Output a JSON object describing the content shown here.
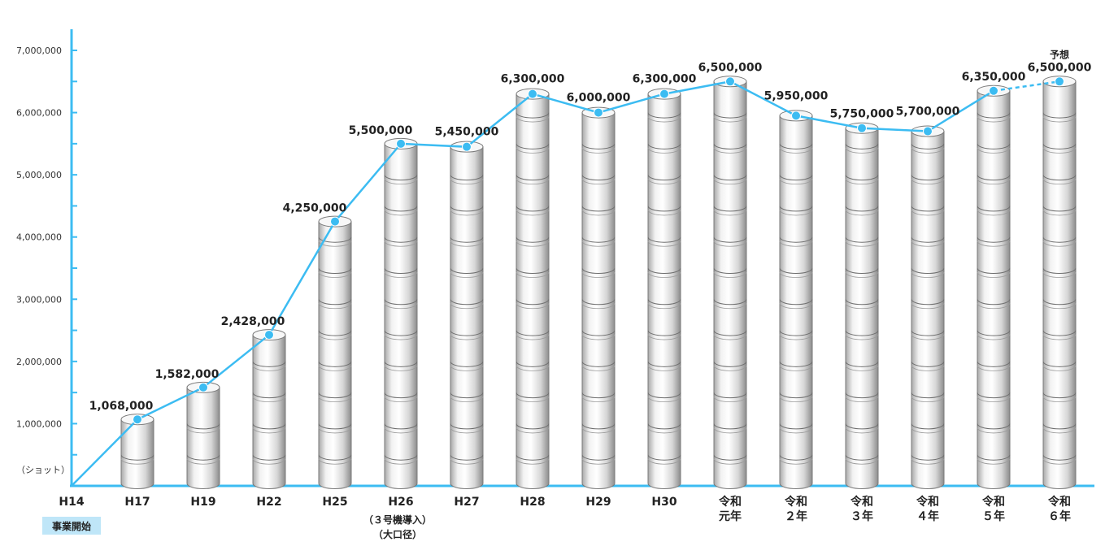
{
  "chart_data": {
    "type": "bar",
    "unit_label": "（ショット）",
    "ylim": [
      0,
      7300000
    ],
    "y_ticks": [
      1000000,
      2000000,
      3000000,
      4000000,
      5000000,
      6000000,
      7000000
    ],
    "y_tick_labels": [
      "1,000,000",
      "2,000,000",
      "3,000,000",
      "4,000,000",
      "5,000,000",
      "6,000,000",
      "7,000,000"
    ],
    "grid": false,
    "accent_color": "#3cbcf2",
    "categories": [
      {
        "label": [
          "H14"
        ],
        "value": 0,
        "data_label": "",
        "bar": false
      },
      {
        "label": [
          "H17"
        ],
        "value": 1068000,
        "data_label": "1,068,000",
        "bar": true
      },
      {
        "label": [
          "H19"
        ],
        "value": 1582000,
        "data_label": "1,582,000",
        "bar": true
      },
      {
        "label": [
          "H22"
        ],
        "value": 2428000,
        "data_label": "2,428,000",
        "bar": true
      },
      {
        "label": [
          "H25"
        ],
        "value": 4250000,
        "data_label": "4,250,000",
        "bar": true
      },
      {
        "label": [
          "H26"
        ],
        "value": 5500000,
        "data_label": "5,500,000",
        "bar": true
      },
      {
        "label": [
          "H27"
        ],
        "value": 5450000,
        "data_label": "5,450,000",
        "bar": true
      },
      {
        "label": [
          "H28"
        ],
        "value": 6300000,
        "data_label": "6,300,000",
        "bar": true
      },
      {
        "label": [
          "H29"
        ],
        "value": 6000000,
        "data_label": "6,000,000",
        "bar": true
      },
      {
        "label": [
          "H30"
        ],
        "value": 6300000,
        "data_label": "6,300,000",
        "bar": true
      },
      {
        "label": [
          "令和",
          "元年"
        ],
        "value": 6500000,
        "data_label": "6,500,000",
        "bar": true
      },
      {
        "label": [
          "令和",
          "２年"
        ],
        "value": 5950000,
        "data_label": "5,950,000",
        "bar": true
      },
      {
        "label": [
          "令和",
          "３年"
        ],
        "value": 5750000,
        "data_label": "5,750,000",
        "bar": true
      },
      {
        "label": [
          "令和",
          "４年"
        ],
        "value": 5700000,
        "data_label": "5,700,000",
        "bar": true
      },
      {
        "label": [
          "令和",
          "５年"
        ],
        "value": 6350000,
        "data_label": "6,350,000",
        "bar": true
      },
      {
        "label": [
          "令和",
          "６年"
        ],
        "value": 6500000,
        "data_label": "6,500,000",
        "bar": true,
        "forecast_label": "予想"
      }
    ],
    "annotations": {
      "start_badge": "事業開始",
      "h26_note": [
        "（３号機導入）",
        "（大口径）"
      ]
    }
  }
}
